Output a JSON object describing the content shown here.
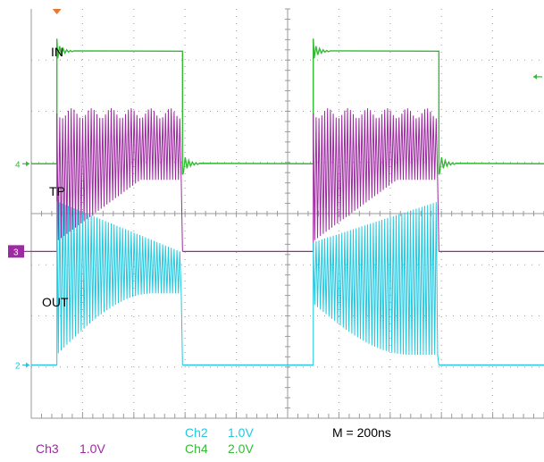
{
  "chart_data": {
    "type": "line",
    "title": "",
    "xlabel": "",
    "ylabel": "",
    "grid": true,
    "divisions": {
      "x": 10,
      "y": 8
    },
    "time_per_division_ns": 200,
    "trigger_time_ns": 100,
    "period_ns": 1000,
    "pulse_width_ns": 490,
    "series": [
      {
        "name": "IN",
        "channel": 4,
        "color": "#33bb33",
        "volts_per_division": 2.0,
        "waveform": "square pulse",
        "low_level_div": 0,
        "high_level_div": 2.2
      },
      {
        "name": "TP",
        "channel": 3,
        "color": "#9c2aa0",
        "volts_per_division": 1.0,
        "waveform": "burst oscillation during pulse",
        "low_level_div": 0,
        "burst_high_div": 2.7,
        "burst_low_start_div": 0.2,
        "burst_low_end_div": 1.4
      },
      {
        "name": "OUT",
        "channel": 2,
        "color": "#22c8e0",
        "volts_per_division": 1.0,
        "waveform": "burst oscillation during pulse",
        "low_level_div": 0,
        "envelope_top_first": [
          3.2,
          2.2
        ],
        "envelope_bottom_first": [
          0.2,
          1.4
        ],
        "envelope_top_second": [
          2.4,
          3.2
        ],
        "envelope_bottom_second": [
          1.2,
          0.2
        ]
      }
    ]
  },
  "labels": {
    "in": "IN",
    "tp": "TP",
    "out": "OUT",
    "marker4": "4",
    "marker3": "3",
    "marker2": "2"
  },
  "footer": {
    "ch2": "Ch2",
    "ch2_scale": "1.0V",
    "ch3": "Ch3",
    "ch3_scale": "1.0V",
    "ch4": "Ch4",
    "ch4_scale": "2.0V",
    "timebase": "M = 200ns"
  },
  "colors": {
    "ch2": "#22c8e0",
    "ch3": "#9c2aa0",
    "ch4": "#33bb33",
    "trigger": "#e87830",
    "grid": "#9a9a9a"
  }
}
